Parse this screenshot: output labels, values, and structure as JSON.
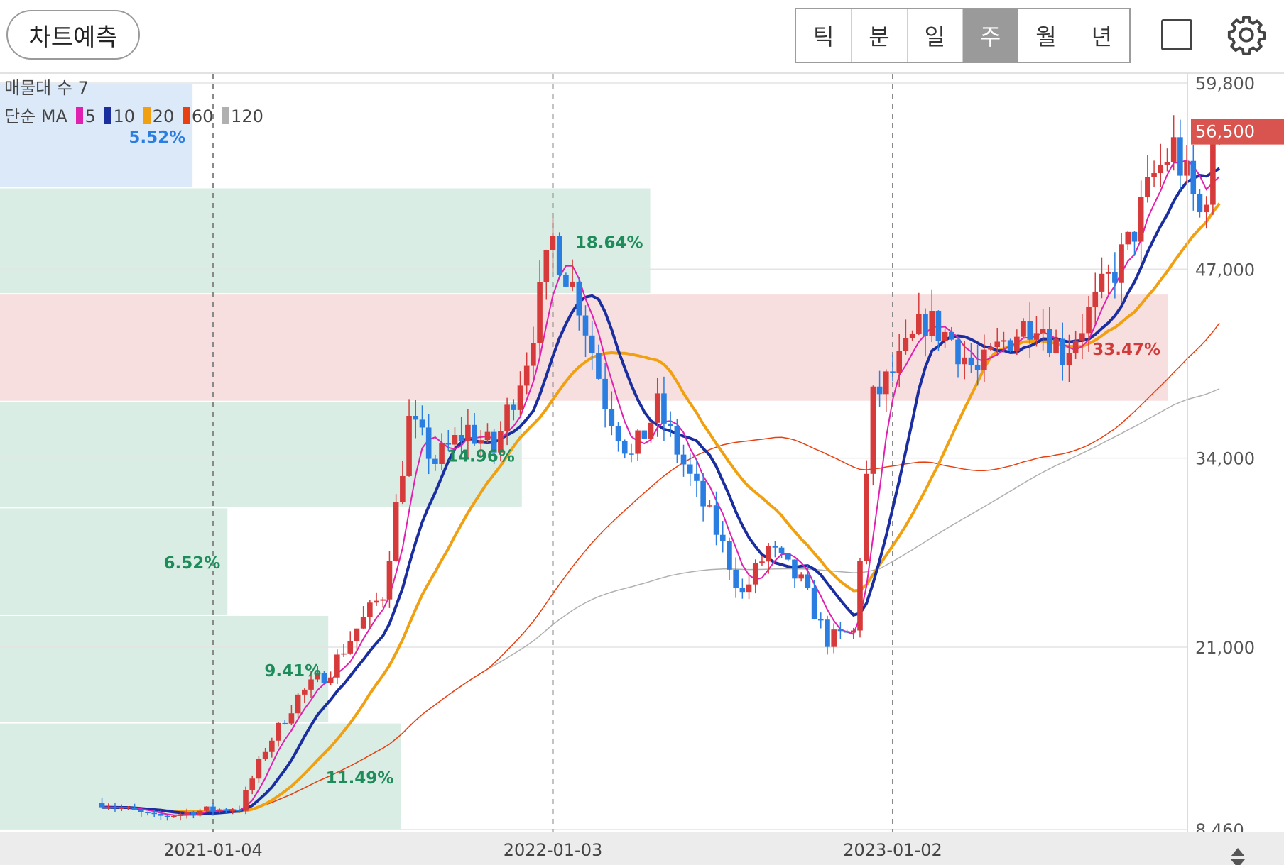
{
  "toolbar": {
    "predict_label": "차트예측",
    "tabs": [
      "틱",
      "분",
      "일",
      "주",
      "월",
      "년"
    ],
    "active_tab": "주",
    "icons": [
      "fullscreen-icon",
      "gear-icon"
    ]
  },
  "legend": {
    "volume_profile": "매물대 수 7",
    "ma_prefix": "단순 MA",
    "ma_periods": [
      "5",
      "10",
      "20",
      "60",
      "120"
    ],
    "ma_colors": [
      "#e020b0",
      "#1a2ea0",
      "#f0a010",
      "#e84010",
      "#b0b0b0"
    ]
  },
  "colors": {
    "up": "#d63a3a",
    "down": "#2a7de1",
    "zone_green": "#d9ede5",
    "zone_red": "#f8dfdf",
    "zone_blue": "#dce9f8",
    "current_price_bg": "#d9534f"
  },
  "chart_data": {
    "type": "candlestick",
    "y_ticks": [
      "59,800",
      "47,000",
      "34,000",
      "21,000",
      "8,460"
    ],
    "x_ticks": [
      "2021-01-04",
      "2022-01-03",
      "2023-01-02"
    ],
    "ylim": [
      8460,
      59800
    ],
    "current_price": "56,500",
    "volume_profile": [
      {
        "range": [
          8460,
          15800
        ],
        "pct": "11.49%",
        "color": "green"
      },
      {
        "range": [
          15800,
          23200
        ],
        "pct": "9.41%",
        "color": "green"
      },
      {
        "range": [
          23200,
          30600
        ],
        "pct": "6.52%",
        "color": "green"
      },
      {
        "range": [
          30600,
          37900
        ],
        "pct": "14.96%",
        "color": "green"
      },
      {
        "range": [
          37900,
          45300
        ],
        "pct": "33.47%",
        "color": "red"
      },
      {
        "range": [
          45300,
          52600
        ],
        "pct": "18.64%",
        "color": "green"
      },
      {
        "range": [
          52600,
          59800
        ],
        "pct": "5.52%",
        "color": "blue"
      }
    ],
    "weekly_close_path": [
      [
        "2020-09-07",
        10300
      ],
      [
        "2020-11-02",
        9300
      ],
      [
        "2020-12-28",
        9800
      ],
      [
        "2021-02-01",
        9900
      ],
      [
        "2021-03-01",
        14000
      ],
      [
        "2021-04-05",
        17600
      ],
      [
        "2021-05-10",
        19500
      ],
      [
        "2021-06-07",
        22300
      ],
      [
        "2021-07-05",
        24700
      ],
      [
        "2021-08-02",
        36500
      ],
      [
        "2021-08-30",
        33800
      ],
      [
        "2021-10-04",
        36000
      ],
      [
        "2021-11-01",
        34500
      ],
      [
        "2021-12-06",
        41000
      ],
      [
        "2022-01-03",
        49000
      ],
      [
        "2022-01-31",
        44800
      ],
      [
        "2022-02-28",
        38000
      ],
      [
        "2022-03-28",
        34000
      ],
      [
        "2022-04-25",
        37500
      ],
      [
        "2022-05-30",
        32600
      ],
      [
        "2022-06-27",
        29000
      ],
      [
        "2022-07-25",
        24600
      ],
      [
        "2022-08-22",
        27800
      ],
      [
        "2022-09-26",
        25400
      ],
      [
        "2022-10-24",
        21500
      ],
      [
        "2022-11-21",
        22000
      ],
      [
        "2022-12-12",
        38000
      ],
      [
        "2023-01-09",
        40500
      ],
      [
        "2023-02-06",
        43500
      ],
      [
        "2023-03-06",
        42200
      ],
      [
        "2023-04-03",
        39800
      ],
      [
        "2023-05-01",
        42000
      ],
      [
        "2023-06-05",
        43800
      ],
      [
        "2023-07-03",
        41200
      ],
      [
        "2023-08-07",
        44600
      ],
      [
        "2023-09-11",
        48600
      ],
      [
        "2023-10-09",
        53400
      ],
      [
        "2023-10-30",
        55400
      ],
      [
        "2023-11-27",
        50700
      ],
      [
        "2023-12-18",
        56500
      ]
    ]
  }
}
